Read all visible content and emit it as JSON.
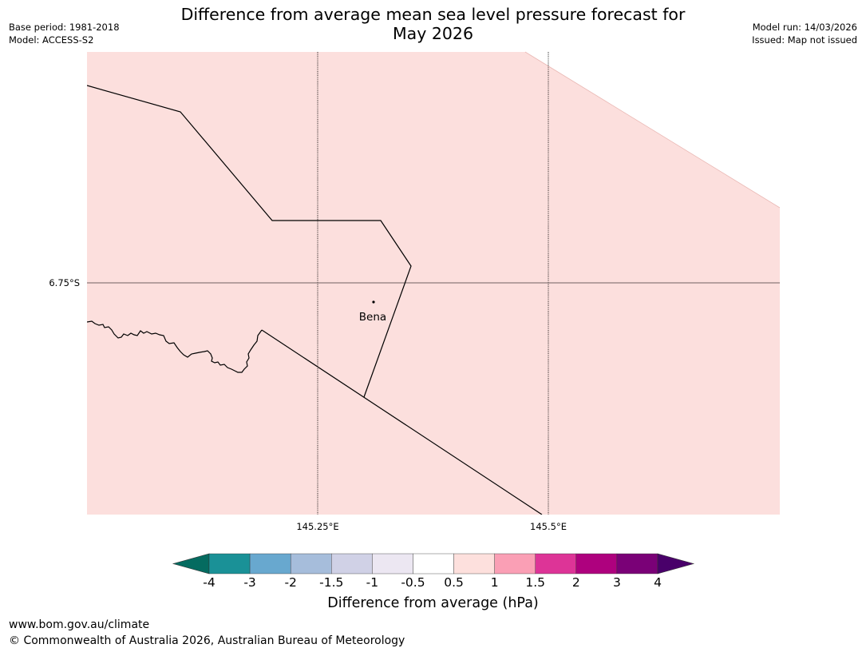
{
  "title": {
    "line1": "Difference from average mean sea level pressure forecast for",
    "line2": "May 2026"
  },
  "meta": {
    "base_period": "Base period: 1981-2018",
    "model": "Model: ACCESS-S2",
    "model_run": "Model run: 14/03/2026",
    "issued": "Issued: Map not issued"
  },
  "map": {
    "fill_color": "#fcdfdd",
    "latitude_labels": [
      "6.75°S"
    ],
    "longitude_labels": [
      "145.25°E",
      "145.5°E"
    ],
    "town": {
      "name": "Bena"
    }
  },
  "colorbar": {
    "label": "Difference from average (hPa)",
    "ticks": [
      "-4",
      "-3",
      "-2",
      "-1.5",
      "-1",
      "-0.5",
      "0.5",
      "1",
      "1.5",
      "2",
      "3",
      "4"
    ],
    "colors": [
      "#056b60",
      "#1a9197",
      "#68a8cf",
      "#a6bddb",
      "#d0d1e6",
      "#ece7f2",
      "#ffffff",
      "#fde0dd",
      "#fa9fb5",
      "#dd3497",
      "#ae017e",
      "#7a0177",
      "#49006a"
    ]
  },
  "footer": {
    "url": "www.bom.gov.au/climate",
    "copyright": "© Commonwealth of Australia 2026, Australian Bureau of Meteorology"
  }
}
